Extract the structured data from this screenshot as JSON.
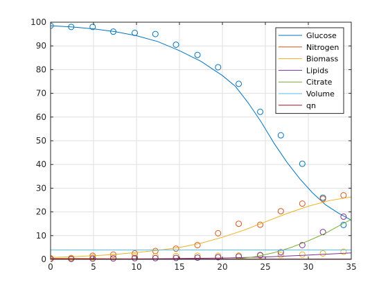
{
  "chart_data": {
    "type": "line",
    "title": "",
    "xlabel": "",
    "ylabel": "",
    "xlim": [
      0,
      35
    ],
    "ylim": [
      0,
      100
    ],
    "xticks": [
      0,
      5,
      10,
      15,
      20,
      25,
      30,
      35
    ],
    "yticks": [
      0,
      10,
      20,
      30,
      40,
      50,
      60,
      70,
      80,
      90,
      100
    ],
    "grid": true,
    "legend_position": "top-right",
    "series": [
      {
        "name": "Glucose",
        "color": "#0072BD",
        "line": {
          "x": [
            0,
            2.5,
            5,
            7.5,
            10,
            12.5,
            15,
            17.5,
            20,
            21.5,
            23,
            24.5,
            26,
            27.5,
            29,
            30.5,
            32,
            33.5,
            35
          ],
          "y": [
            98.5,
            98,
            97.2,
            96,
            94.3,
            91.8,
            88,
            83.5,
            77.5,
            73,
            66,
            58,
            49,
            41,
            34,
            28,
            23,
            19.5,
            16.5
          ]
        },
        "markers": {
          "x": [
            0,
            2.4,
            4.9,
            7.3,
            9.8,
            12.2,
            14.6,
            17.1,
            19.5,
            21.9,
            24.4,
            26.8,
            29.3,
            31.7,
            34.1
          ],
          "y": [
            98.5,
            98,
            98,
            96,
            95.5,
            95,
            90.5,
            86.2,
            81,
            74,
            62.2,
            52.3,
            40.3,
            26,
            14.5
          ]
        }
      },
      {
        "name": "Nitrogen",
        "color": "#D95319",
        "line": {
          "x": [
            0,
            5,
            10,
            15,
            20,
            25,
            30,
            35
          ],
          "y": [
            0.4,
            0.3,
            0.2,
            0.15,
            0.1,
            0.05,
            0.05,
            0.05
          ]
        },
        "markers": {
          "x": [
            0,
            2.4,
            4.9,
            7.3,
            9.8,
            12.2,
            14.6,
            17.1,
            19.5,
            21.9,
            24.4,
            26.8,
            29.3,
            31.7,
            34.1
          ],
          "y": [
            0.3,
            0.5,
            1.5,
            2,
            2.5,
            3.5,
            4.5,
            6,
            11,
            15,
            14.6,
            20.3,
            23.5,
            25.5,
            27
          ]
        }
      },
      {
        "name": "Biomass",
        "color": "#EDB120",
        "line": {
          "x": [
            0,
            2.5,
            5,
            7.5,
            10,
            12.5,
            15,
            17.5,
            20,
            22.5,
            25,
            27.5,
            30,
            32.5,
            35
          ],
          "y": [
            0.8,
            1.1,
            1.5,
            2.1,
            2.9,
            3.8,
            5,
            6.8,
            9.3,
            12.3,
            15.8,
            19.3,
            22.4,
            24.8,
            26.3
          ]
        },
        "markers": {
          "x": [
            0,
            2.4,
            4.9,
            7.3,
            9.8,
            12.2,
            14.6,
            17.1,
            19.5,
            21.9,
            24.4,
            26.8,
            29.3,
            31.7,
            34.1
          ],
          "y": [
            0.5,
            0.6,
            0.8,
            1,
            1.2,
            1.3,
            1.4,
            1.5,
            1.5,
            1.6,
            1.6,
            1.8,
            2,
            2.5,
            3.2
          ]
        }
      },
      {
        "name": "Lipids",
        "color": "#7E2F8E",
        "line": {
          "x": [
            0,
            5,
            10,
            15,
            20,
            25,
            30,
            35
          ],
          "y": [
            0,
            0.1,
            0.2,
            0.35,
            0.55,
            1.0,
            1.8,
            2.7
          ]
        },
        "markers": {
          "x": [
            0,
            2.4,
            4.9,
            7.3,
            9.8,
            12.2,
            14.6,
            17.1,
            19.5,
            21.9,
            24.4,
            26.8,
            29.3,
            31.7,
            34.1
          ],
          "y": [
            0.2,
            0.2,
            0.3,
            0.4,
            0.5,
            0.5,
            0.6,
            0.7,
            0.9,
            1.2,
            1.8,
            3,
            6,
            11.5,
            18
          ]
        }
      },
      {
        "name": "Citrate",
        "color": "#77AC30",
        "line": {
          "x": [
            0,
            20,
            22,
            24,
            26,
            28,
            30,
            32,
            34,
            35
          ],
          "y": [
            0,
            0,
            0.3,
            1.2,
            2.8,
            5,
            7.8,
            11,
            15,
            16.8
          ]
        },
        "markers": {
          "x": [],
          "y": []
        }
      },
      {
        "name": "Volume",
        "color": "#4DBEEE",
        "line": {
          "x": [
            0,
            35
          ],
          "y": [
            4,
            4
          ]
        },
        "markers": {
          "x": [],
          "y": []
        }
      },
      {
        "name": "qn",
        "color": "#A2142F",
        "line": {
          "x": [
            0,
            35
          ],
          "y": [
            0.1,
            0.1
          ]
        },
        "markers": {
          "x": [],
          "y": []
        }
      }
    ]
  }
}
